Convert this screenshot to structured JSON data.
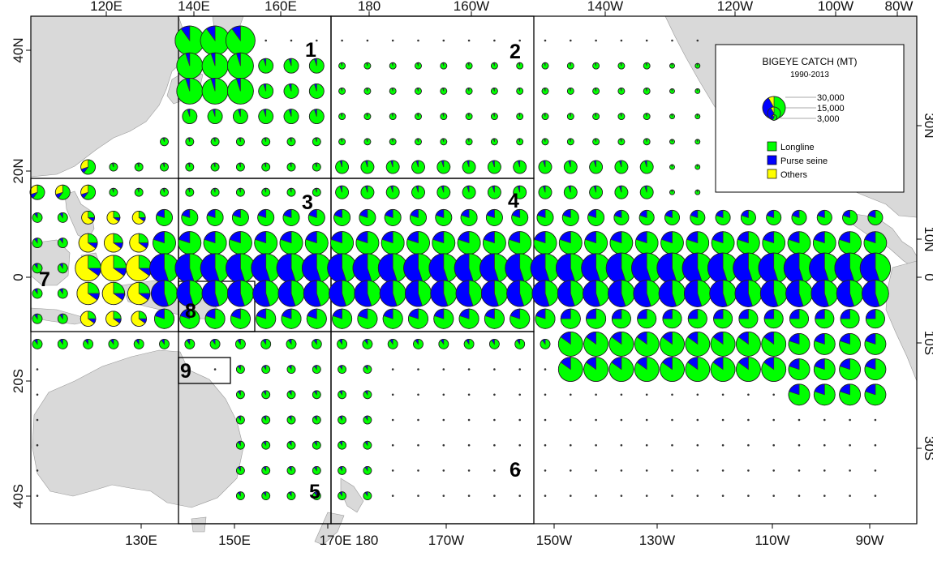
{
  "top_axis_labels": [
    "120E",
    "140E",
    "160E",
    "180",
    "160W",
    "140W",
    "120W",
    "100W",
    "80W"
  ],
  "bottom_axis_labels": [
    "130E",
    "150E",
    "170E 180",
    "170W",
    "150W",
    "130W",
    "110W",
    "90W"
  ],
  "left_axis_labels": [
    "40N",
    "20N",
    "0",
    "20S",
    "40S"
  ],
  "right_axis_labels": [
    "30N",
    "10N",
    "0",
    "10S",
    "30S"
  ],
  "regions": [
    {
      "label": "1"
    },
    {
      "label": "2"
    },
    {
      "label": "3"
    },
    {
      "label": "4"
    },
    {
      "label": "5"
    },
    {
      "label": "6"
    },
    {
      "label": "7"
    },
    {
      "label": "8"
    },
    {
      "label": "9"
    }
  ],
  "legend": {
    "title": "BIGEYE CATCH (MT)",
    "subtitle": "1990-2013",
    "sizes": [
      "30,000",
      "15,000",
      "3,000"
    ],
    "gears": [
      {
        "label": "Longline",
        "color": "#00ff00"
      },
      {
        "label": "Purse seine",
        "color": "#0000ff"
      },
      {
        "label": "Others",
        "color": "#ffff00"
      }
    ]
  },
  "colors": {
    "longline": "#00ff00",
    "purse_seine": "#0000ff",
    "others": "#ffff00",
    "land": "#d9d9d9"
  }
}
